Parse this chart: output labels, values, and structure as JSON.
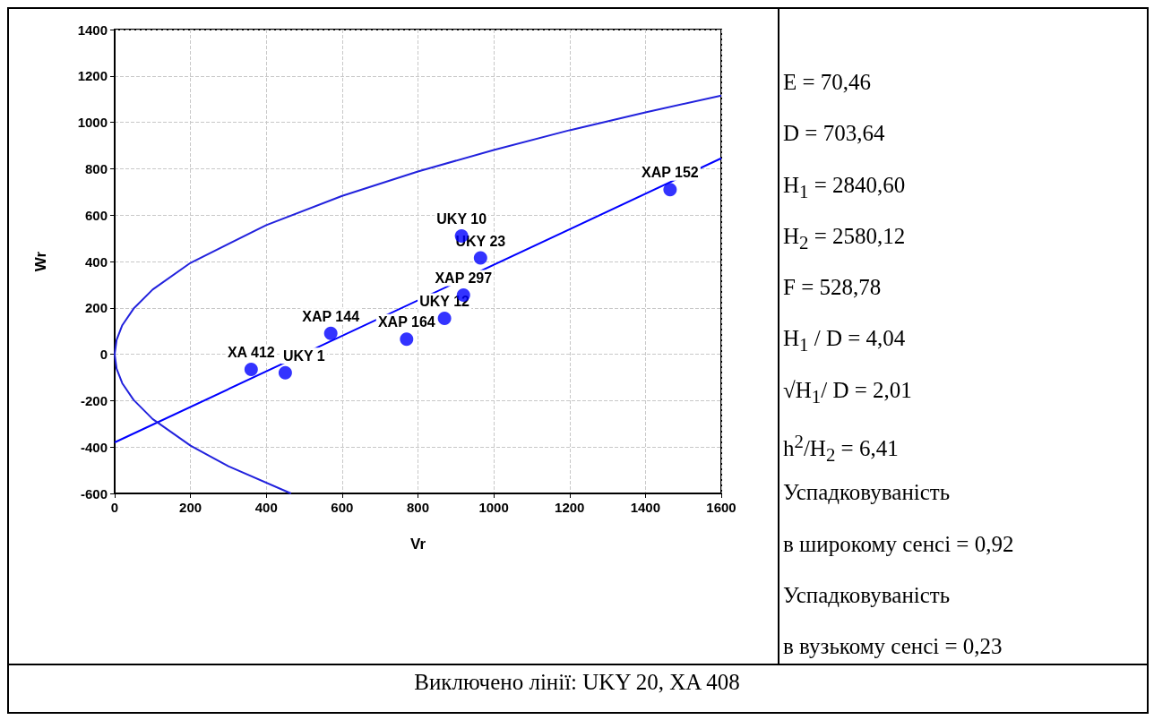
{
  "chart_data": {
    "type": "scatter",
    "xlabel": "Vr",
    "ylabel": "Wr",
    "xlim": [
      0,
      1600
    ],
    "ylim": [
      -600,
      1400
    ],
    "xticks": [
      0,
      200,
      400,
      600,
      800,
      1000,
      1200,
      1400,
      1600
    ],
    "yticks": [
      -600,
      -400,
      -200,
      0,
      200,
      400,
      600,
      800,
      1000,
      1200,
      1400
    ],
    "grid": true,
    "series": [
      {
        "marker": "circle",
        "color": "#0000ff",
        "x": [
          360,
          450,
          570,
          770,
          870,
          920,
          915,
          965,
          1465
        ],
        "values": [
          -65,
          -80,
          90,
          65,
          155,
          255,
          510,
          415,
          710
        ]
      },
      {
        "type": "line",
        "marker": "none",
        "color": "#0000ff",
        "x": [
          0,
          1600
        ],
        "values": [
          -380,
          845
        ]
      },
      {
        "type": "line",
        "marker": "none",
        "color": "#2222dd",
        "x": [
          465,
          300,
          200,
          100,
          50,
          20,
          5,
          0,
          5,
          20,
          50,
          100,
          200,
          400,
          600,
          800,
          1000,
          1200,
          1400,
          1600
        ],
        "values": [
          -600,
          -483,
          -394,
          -279,
          -197,
          -125,
          -62,
          0,
          62,
          125,
          197,
          279,
          394,
          557,
          683,
          788,
          881,
          966,
          1043,
          1115
        ]
      }
    ],
    "annotations": [
      {
        "text": "XA 412",
        "x": 360,
        "y": -65
      },
      {
        "text": "UKY 1",
        "x": 450,
        "y": -80
      },
      {
        "text": "XAP 144",
        "x": 570,
        "y": 90
      },
      {
        "text": "XAP 164",
        "x": 770,
        "y": 65
      },
      {
        "text": "UKY 12",
        "x": 870,
        "y": 155
      },
      {
        "text": "XAP 297",
        "x": 920,
        "y": 255
      },
      {
        "text": "UKY 10",
        "x": 915,
        "y": 510
      },
      {
        "text": "UKY 23",
        "x": 965,
        "y": 415
      },
      {
        "text": "XAP 152",
        "x": 1465,
        "y": 710
      },
      "E = 70,46",
      "D = 703,64",
      "H$_{1}$ = 2840,60",
      "H$_{2}$ = 2580,12",
      "F = 528,78",
      "H$_{1}$ / D = 4,04",
      "√H$_{1}$/ D = 2,01",
      "h$^{2}$/H$_{2}$ = 6,41",
      "Успадковуваність",
      "в широкому сенсі = 0,92",
      "Успадковуваність",
      "в вузькому сенсі = 0,23",
      "Виключено лінії: UKY 20, XA 408"
    ]
  }
}
